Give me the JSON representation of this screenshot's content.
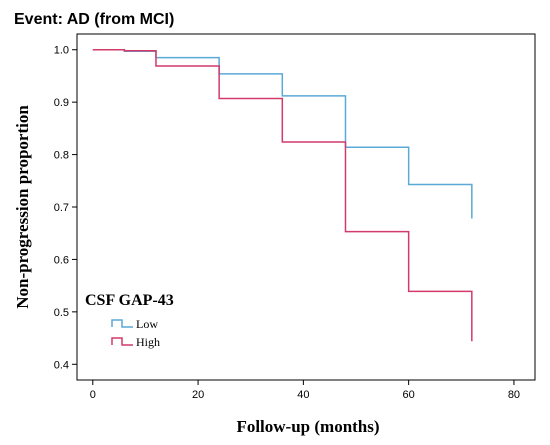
{
  "chart_data": {
    "type": "line",
    "step": true,
    "title": "Event: AD (from MCI)",
    "xlabel": "Follow-up (months)",
    "ylabel": "Non-progression proportion",
    "xlim": [
      -3,
      84
    ],
    "ylim": [
      0.37,
      1.03
    ],
    "xticks": [
      0,
      20,
      40,
      60,
      80
    ],
    "yticks": [
      0.4,
      0.5,
      0.6,
      0.7,
      0.8,
      0.9,
      1.0
    ],
    "xtick_labels": [
      "0",
      "20",
      "40",
      "60",
      "80"
    ],
    "ytick_labels": [
      "0.4",
      "0.5",
      "0.6",
      "0.7",
      "0.8",
      "0.9",
      "1.0"
    ],
    "grid": false,
    "legend": {
      "title": "CSF GAP-43",
      "placement": "bottom-left"
    },
    "series": [
      {
        "name": "Low",
        "color": "#5aa9d6",
        "x": [
          0,
          6,
          12,
          24,
          36,
          48,
          60,
          72
        ],
        "y": [
          1.0,
          0.997,
          0.985,
          0.954,
          0.912,
          0.814,
          0.743,
          0.678
        ]
      },
      {
        "name": "High",
        "color": "#d23a6a",
        "x": [
          0,
          6,
          12,
          24,
          36,
          48,
          60,
          72
        ],
        "y": [
          1.0,
          0.998,
          0.969,
          0.907,
          0.824,
          0.653,
          0.539,
          0.444
        ]
      }
    ]
  }
}
